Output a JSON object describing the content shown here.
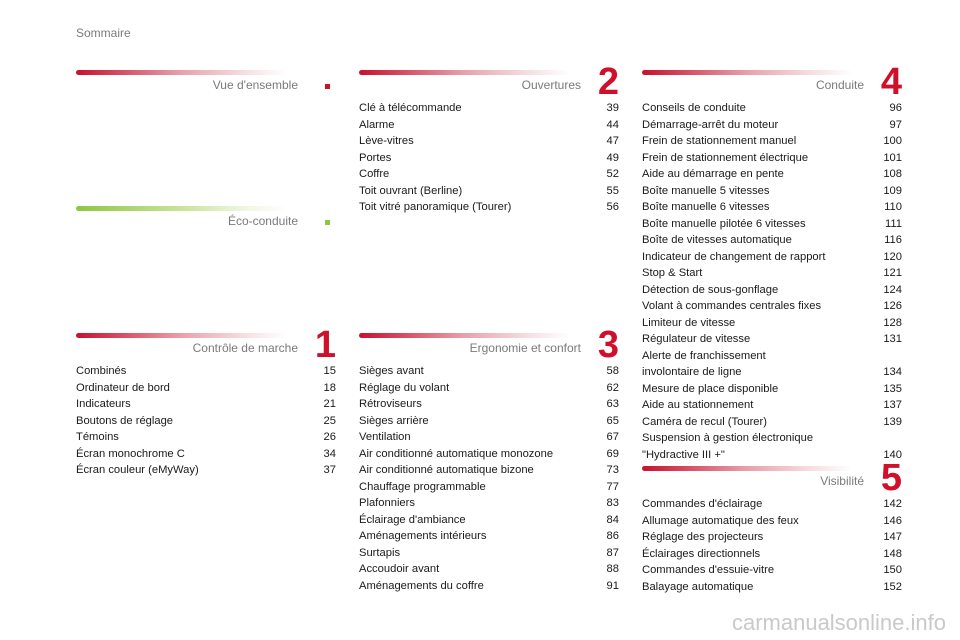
{
  "page_label": "Sommaire",
  "sections": {
    "vue": {
      "title": "Vue d'ensemble",
      "entries": []
    },
    "eco": {
      "title": "Éco-conduite",
      "entries": []
    },
    "controle": {
      "title": "Contrôle de marche",
      "number": "1",
      "entries": [
        {
          "label": "Combinés",
          "page": "15"
        },
        {
          "label": "Ordinateur de bord",
          "page": "18"
        },
        {
          "label": "Indicateurs",
          "page": "21"
        },
        {
          "label": "Boutons de réglage",
          "page": "25"
        },
        {
          "label": "Témoins",
          "page": "26"
        },
        {
          "label": "Écran monochrome C",
          "page": "34"
        },
        {
          "label": "Écran couleur (eMyWay)",
          "page": "37"
        }
      ]
    },
    "ouvertures": {
      "title": "Ouvertures",
      "number": "2",
      "entries": [
        {
          "label": "Clé à télécommande",
          "page": "39"
        },
        {
          "label": "Alarme",
          "page": "44"
        },
        {
          "label": "Lève-vitres",
          "page": "47"
        },
        {
          "label": "Portes",
          "page": "49"
        },
        {
          "label": "Coffre",
          "page": "52"
        },
        {
          "label": "Toit ouvrant (Berline)",
          "page": "55"
        },
        {
          "label": "Toit vitré panoramique (Tourer)",
          "page": "56"
        }
      ]
    },
    "ergonomie": {
      "title": "Ergonomie et confort",
      "number": "3",
      "entries": [
        {
          "label": "Sièges avant",
          "page": "58"
        },
        {
          "label": "Réglage du volant",
          "page": "62"
        },
        {
          "label": "Rétroviseurs",
          "page": "63"
        },
        {
          "label": "Sièges arrière",
          "page": "65"
        },
        {
          "label": "Ventilation",
          "page": "67"
        },
        {
          "label": "Air conditionné automatique monozone",
          "page": "69"
        },
        {
          "label": "Air conditionné automatique bizone",
          "page": "73"
        },
        {
          "label": "Chauffage programmable",
          "page": "77"
        },
        {
          "label": "Plafonniers",
          "page": "83"
        },
        {
          "label": "Éclairage d'ambiance",
          "page": "84"
        },
        {
          "label": "Aménagements intérieurs",
          "page": "86"
        },
        {
          "label": "Surtapis",
          "page": "87"
        },
        {
          "label": "Accoudoir avant",
          "page": "88"
        },
        {
          "label": "Aménagements du coffre",
          "page": "91"
        }
      ]
    },
    "conduite": {
      "title": "Conduite",
      "number": "4",
      "entries": [
        {
          "label": "Conseils de conduite",
          "page": "96"
        },
        {
          "label": "Démarrage-arrêt du moteur",
          "page": "97"
        },
        {
          "label": "Frein de stationnement manuel",
          "page": "100"
        },
        {
          "label": "Frein de stationnement électrique",
          "page": "101"
        },
        {
          "label": "Aide au démarrage en pente",
          "page": "108"
        },
        {
          "label": "Boîte manuelle 5 vitesses",
          "page": "109"
        },
        {
          "label": "Boîte manuelle 6 vitesses",
          "page": "110"
        },
        {
          "label": "Boîte manuelle pilotée 6 vitesses",
          "page": "111"
        },
        {
          "label": "Boîte de vitesses automatique",
          "page": "116"
        },
        {
          "label": "Indicateur de changement de rapport",
          "page": "120"
        },
        {
          "label": "Stop & Start",
          "page": "121"
        },
        {
          "label": "Détection de sous-gonflage",
          "page": "124"
        },
        {
          "label": "Volant à commandes centrales fixes",
          "page": "126"
        },
        {
          "label": "Limiteur de vitesse",
          "page": "128"
        },
        {
          "label": "Régulateur de vitesse",
          "page": "131"
        },
        {
          "label": "Alerte de franchissement\ninvolontaire de ligne",
          "page": "134"
        },
        {
          "label": "Mesure de place disponible",
          "page": "135"
        },
        {
          "label": "Aide au stationnement",
          "page": "137"
        },
        {
          "label": "Caméra de recul (Tourer)",
          "page": "139"
        },
        {
          "label": "Suspension à gestion électronique\n\"Hydractive III +\"",
          "page": "140"
        }
      ]
    },
    "visibilite": {
      "title": "Visibilité",
      "number": "5",
      "entries": [
        {
          "label": "Commandes d'éclairage",
          "page": "142"
        },
        {
          "label": "Allumage automatique des feux",
          "page": "146"
        },
        {
          "label": "Réglage des projecteurs",
          "page": "147"
        },
        {
          "label": "Éclairages directionnels",
          "page": "148"
        },
        {
          "label": "Commandes d'essuie-vitre",
          "page": "150"
        },
        {
          "label": "Balayage automatique",
          "page": "152"
        }
      ]
    }
  },
  "watermark": "carmanualsonline.info"
}
